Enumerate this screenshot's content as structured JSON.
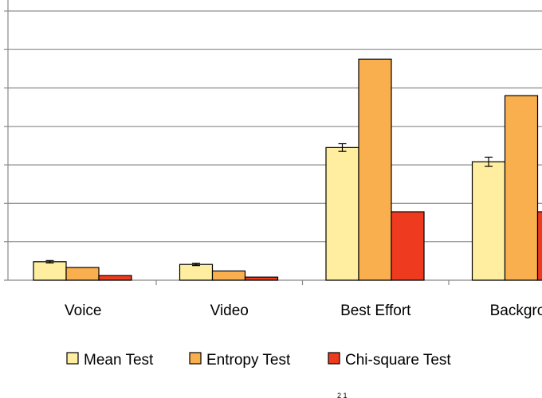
{
  "chart_data": {
    "type": "bar",
    "title": "",
    "xlabel": "",
    "ylabel": "",
    "categories": [
      "Voice",
      "Video",
      "Best Effort",
      "Backgrou"
    ],
    "ylim": [
      0,
      7
    ],
    "y_gridlines": [
      0,
      1,
      2,
      3,
      4,
      5,
      6,
      7
    ],
    "grid": true,
    "legend_position": "bottom",
    "series": [
      {
        "name": "Mean Test",
        "color": "#FFEEA0",
        "values": [
          0.48,
          0.41,
          3.45,
          3.08
        ],
        "error": [
          0.03,
          0.03,
          0.1,
          0.12
        ]
      },
      {
        "name": "Entropy Test",
        "color": "#F9AF4D",
        "values": [
          0.33,
          0.24,
          5.75,
          4.8
        ]
      },
      {
        "name": "Chi-square Test",
        "color": "#EE3B1F",
        "values": [
          0.12,
          0.08,
          1.78,
          1.78
        ]
      }
    ]
  },
  "stray_text": "2 1"
}
